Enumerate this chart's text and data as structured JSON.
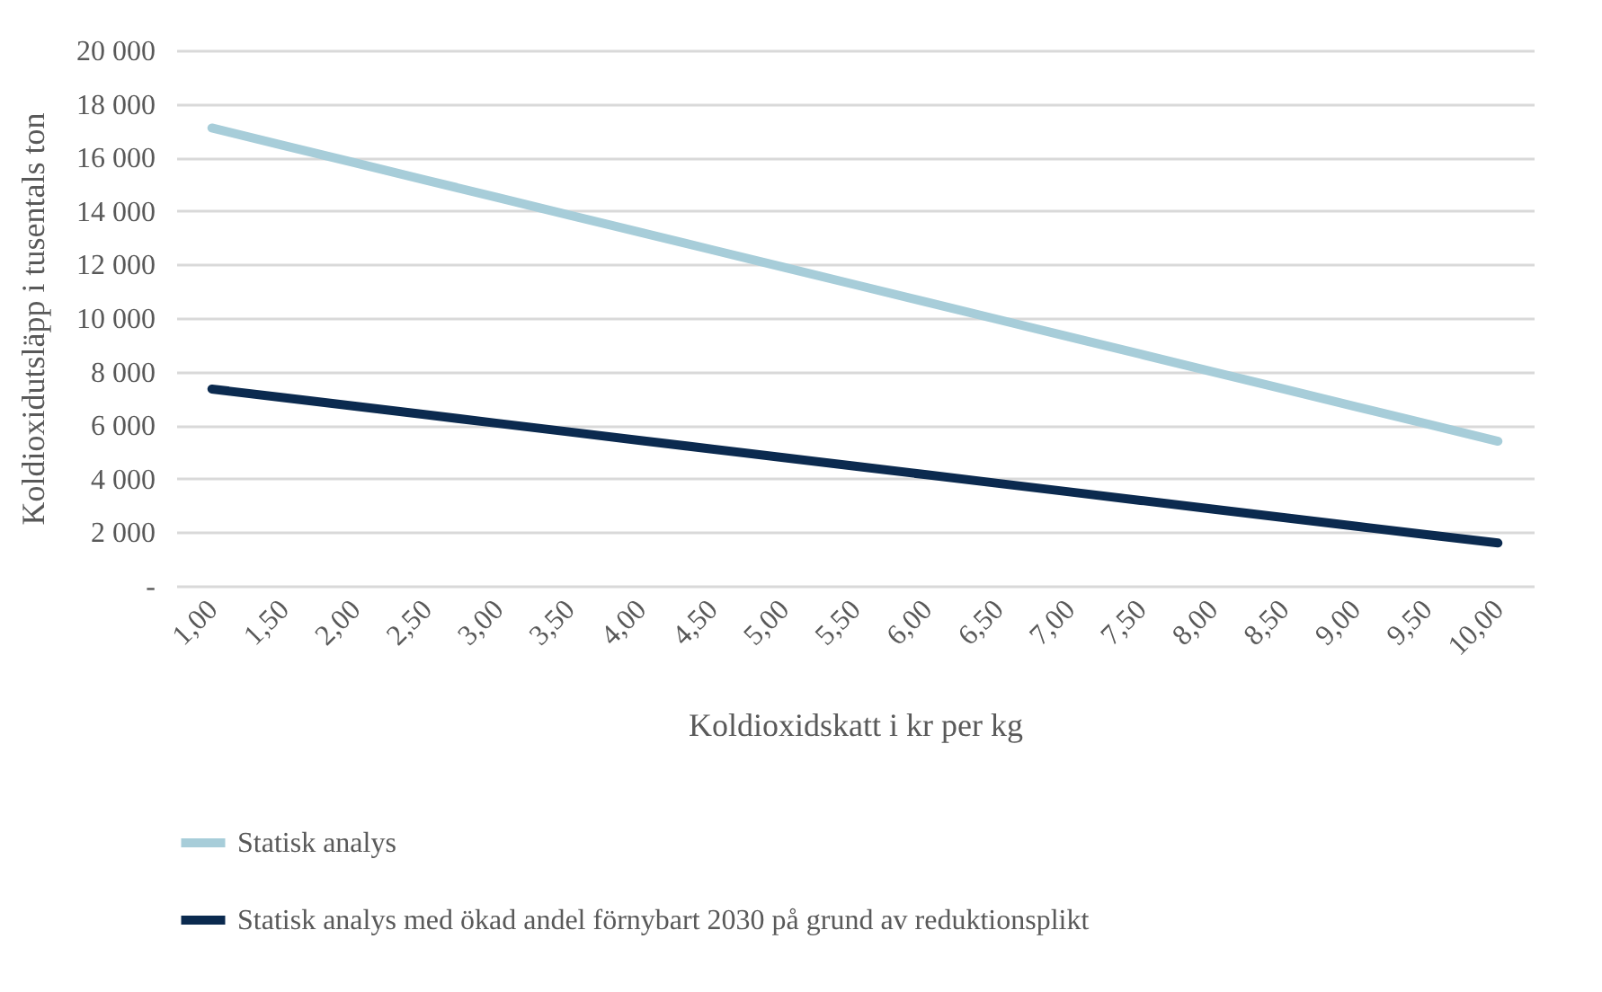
{
  "chart_data": {
    "type": "line",
    "xlabel": "Koldioxidskatt i kr per kg",
    "ylabel": "Koldioxidutsläpp i tusentals ton",
    "categories": [
      "1,00",
      "1,50",
      "2,00",
      "2,50",
      "3,00",
      "3,50",
      "4,00",
      "4,50",
      "5,00",
      "5,50",
      "6,00",
      "6,50",
      "7,00",
      "7,50",
      "8,00",
      "8,50",
      "9,00",
      "9,50",
      "10,00"
    ],
    "series": [
      {
        "name": "Statisk analys",
        "color": "#a7cdd9",
        "values": [
          17100,
          16450,
          15800,
          15150,
          14500,
          13850,
          13200,
          12550,
          11900,
          11250,
          10600,
          9950,
          9300,
          8650,
          8000,
          7350,
          6700,
          6050,
          5400
        ]
      },
      {
        "name": "Statisk analys med ökad andel förnybart 2030 på grund av reduktionsplikt",
        "color": "#0b2a4f",
        "values": [
          7350,
          7030,
          6710,
          6390,
          6070,
          5750,
          5430,
          5110,
          4790,
          4470,
          4150,
          3830,
          3510,
          3190,
          2870,
          2550,
          2230,
          1910,
          1600
        ]
      }
    ],
    "ylim": [
      0,
      20000
    ],
    "yticks": [
      {
        "value": 0,
        "label": "-"
      },
      {
        "value": 2000,
        "label": "2 000"
      },
      {
        "value": 4000,
        "label": "4 000"
      },
      {
        "value": 6000,
        "label": "6 000"
      },
      {
        "value": 8000,
        "label": "8 000"
      },
      {
        "value": 10000,
        "label": "10 000"
      },
      {
        "value": 12000,
        "label": "12 000"
      },
      {
        "value": 14000,
        "label": "14 000"
      },
      {
        "value": 16000,
        "label": "16 000"
      },
      {
        "value": 18000,
        "label": "18 000"
      },
      {
        "value": 20000,
        "label": "20 000"
      }
    ],
    "grid": "y",
    "legend": "bottom",
    "marker": "none",
    "line_style": "solid"
  }
}
